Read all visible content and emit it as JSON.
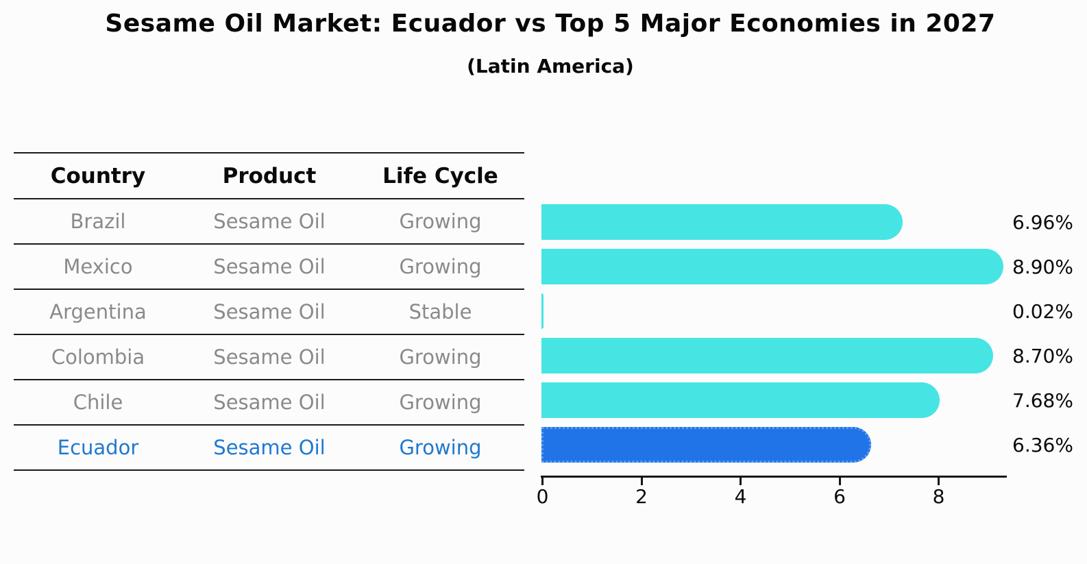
{
  "title": "Sesame Oil Market: Ecuador vs Top 5 Major Economies in 2027",
  "subtitle": "(Latin America)",
  "table": {
    "headers": [
      "Country",
      "Product",
      "Life Cycle"
    ],
    "rows": [
      {
        "country": "Brazil",
        "product": "Sesame Oil",
        "life_cycle": "Growing",
        "highlighted": false
      },
      {
        "country": "Mexico",
        "product": "Sesame Oil",
        "life_cycle": "Growing",
        "highlighted": false
      },
      {
        "country": "Argentina",
        "product": "Sesame Oil",
        "life_cycle": "Stable",
        "highlighted": false
      },
      {
        "country": "Colombia",
        "product": "Sesame Oil",
        "life_cycle": "Growing",
        "highlighted": false
      },
      {
        "country": "Chile",
        "product": "Sesame Oil",
        "life_cycle": "Growing",
        "highlighted": false
      },
      {
        "country": "Ecuador",
        "product": "Sesame Oil",
        "life_cycle": "Growing",
        "highlighted": true
      }
    ]
  },
  "chart_data": {
    "type": "bar",
    "orientation": "horizontal",
    "title": "Sesame Oil Market: Ecuador vs Top 5 Major Economies in 2027 (Latin America)",
    "categories": [
      "Brazil",
      "Mexico",
      "Argentina",
      "Colombia",
      "Chile",
      "Ecuador"
    ],
    "values": [
      6.96,
      8.9,
      0.02,
      8.7,
      7.68,
      6.36
    ],
    "value_labels": [
      "6.96%",
      "8.90%",
      "0.02%",
      "8.70%",
      "7.68%",
      "6.36%"
    ],
    "value_suffix": "%",
    "x_ticks": [
      0,
      2,
      4,
      6,
      8
    ],
    "xlim": [
      0,
      9.4
    ],
    "grid": false,
    "legend": "none",
    "highlight_index": 5
  },
  "colors": {
    "bar": "#46e5e3",
    "highlight_bar": "#2173e8",
    "highlight_edge": "#5b9cf0",
    "highlight_text": "#1f78d1",
    "row_text": "#8a8a8a",
    "axis": "#141414",
    "background": "#fcfcfc"
  }
}
